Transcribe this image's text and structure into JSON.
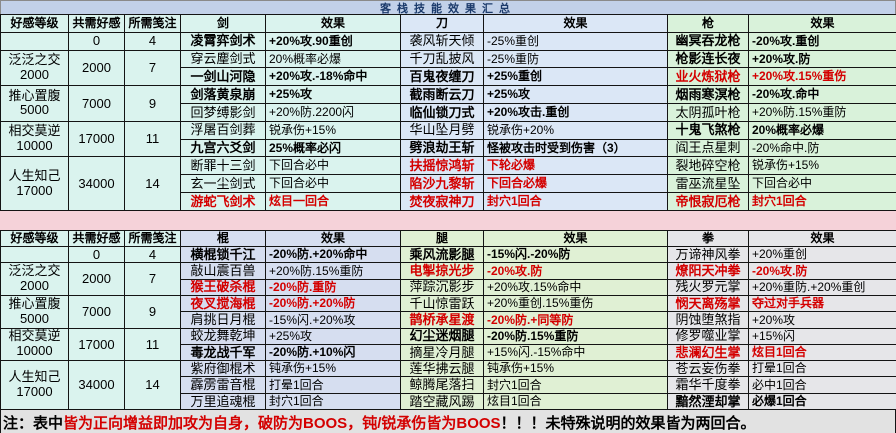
{
  "title": "客栈技能效果汇总",
  "colors": {
    "red_accent": "#d40000",
    "title_bg": "#c2d1e9",
    "title_text": "#1b3a6b",
    "page_pink": "#f5d2d9",
    "cyan_group": "#daf3ee",
    "blue_group": "#dbe7f6",
    "green_group": "#d9f2da",
    "periwinkle_group": "#d6def0",
    "green2_group": "#e0f0d4",
    "gray_group": "#e6e6e9"
  },
  "note": {
    "prefix": "注：表中",
    "red": "皆为正向增益即加攻为自身，破防为BOOS，钝/锐承伤皆为BOOS",
    "suffix": "！！！未特殊说明的效果皆为两回合。"
  },
  "sections": [
    {
      "headers": [
        "好感等级",
        "共需好感",
        "所需笺注",
        "剑",
        "效果",
        "刀",
        "效果",
        "枪",
        "效果"
      ],
      "levels": [
        {
          "name": "",
          "sub": "",
          "total": "0",
          "notes": "4",
          "span": 1
        },
        {
          "name": "泛泛之交",
          "sub": "2000",
          "total": "2000",
          "notes": "7",
          "span": 2
        },
        {
          "name": "推心置腹",
          "sub": "5000",
          "total": "7000",
          "notes": "9",
          "span": 2
        },
        {
          "name": "相交莫逆",
          "sub": "10000",
          "total": "17000",
          "notes": "11",
          "span": 2
        },
        {
          "name": "人生知己",
          "sub": "17000",
          "total": "34000",
          "notes": "14",
          "span": 3
        }
      ],
      "rows": [
        [
          {
            "t": "凌霄弈剑术",
            "s": "b"
          },
          {
            "t": "+20%攻.90重创",
            "s": "b"
          },
          {
            "t": "袭风斩天倾",
            "s": ""
          },
          {
            "t": "-25%重创",
            "s": ""
          },
          {
            "t": "幽冥吞龙枪",
            "s": "b"
          },
          {
            "t": "-20%攻.重创",
            "s": "b"
          }
        ],
        [
          {
            "t": "穿云麈剑式",
            "s": ""
          },
          {
            "t": "20%概率必爆",
            "s": ""
          },
          {
            "t": "千刀乱披风",
            "s": ""
          },
          {
            "t": "-25%重防",
            "s": ""
          },
          {
            "t": "枪影连长夜",
            "s": "b"
          },
          {
            "t": "+20%攻.防",
            "s": "b"
          }
        ],
        [
          {
            "t": "一剑山河隐",
            "s": "b"
          },
          {
            "t": "+20%攻.-18%命中",
            "s": "b"
          },
          {
            "t": "百鬼夜缠刀",
            "s": "b"
          },
          {
            "t": "+25%重创",
            "s": "b"
          },
          {
            "t": "业火炼狱枪",
            "s": "r"
          },
          {
            "t": "+20%攻.15%重伤",
            "s": "r"
          }
        ],
        [
          {
            "t": "剑落黄泉崩",
            "s": "b"
          },
          {
            "t": "+25%攻",
            "s": "b"
          },
          {
            "t": "截雨断云刀",
            "s": "b"
          },
          {
            "t": "+25%攻",
            "s": "b"
          },
          {
            "t": "烟雨寒溟枪",
            "s": "b"
          },
          {
            "t": "-20%攻.命中",
            "s": "b"
          }
        ],
        [
          {
            "t": "回梦缚影剑",
            "s": ""
          },
          {
            "t": "+20%防.2200闪",
            "s": ""
          },
          {
            "t": "临仙锁刀式",
            "s": "b"
          },
          {
            "t": "+20%攻击.重创",
            "s": "b"
          },
          {
            "t": "太阴孤叶枪",
            "s": ""
          },
          {
            "t": "+20%防.15%重防",
            "s": ""
          }
        ],
        [
          {
            "t": "浮屠百剑葬",
            "s": ""
          },
          {
            "t": "锐承伤+15%",
            "s": ""
          },
          {
            "t": "华山坠月劈",
            "s": ""
          },
          {
            "t": "锐承伤+20%",
            "s": ""
          },
          {
            "t": "十鬼飞煞枪",
            "s": "b"
          },
          {
            "t": "20%概率必爆",
            "s": "b"
          }
        ],
        [
          {
            "t": "九宫六爻剑",
            "s": "b"
          },
          {
            "t": "25%概率必闪",
            "s": "b"
          },
          {
            "t": "劈浪劫王斩",
            "s": "b"
          },
          {
            "t": "怪被攻击时受到伤害（3）",
            "s": "b"
          },
          {
            "t": "阎王点星刺",
            "s": ""
          },
          {
            "t": "-20%命中.防",
            "s": ""
          }
        ],
        [
          {
            "t": "断罪十三剑",
            "s": ""
          },
          {
            "t": "下回合必中",
            "s": ""
          },
          {
            "t": "扶摇惊鸿斩",
            "s": "r"
          },
          {
            "t": "下轮必爆",
            "s": "r"
          },
          {
            "t": "裂地碎空枪",
            "s": ""
          },
          {
            "t": "锐承伤+15%",
            "s": ""
          }
        ],
        [
          {
            "t": "玄一尘剑式",
            "s": ""
          },
          {
            "t": "下回合必中",
            "s": ""
          },
          {
            "t": "陷沙九黎斩",
            "s": "r"
          },
          {
            "t": "下回合必爆",
            "s": "r"
          },
          {
            "t": "雷巫流星坠",
            "s": ""
          },
          {
            "t": "下回合必中",
            "s": ""
          }
        ],
        [
          {
            "t": "游蛇飞剑术",
            "s": "r"
          },
          {
            "t": "炫目一回合",
            "s": "r"
          },
          {
            "t": "焚夜寂神刀",
            "s": "r"
          },
          {
            "t": "封穴1回合",
            "s": "r"
          },
          {
            "t": "帝恨寂厄枪",
            "s": "r"
          },
          {
            "t": "封穴1回合",
            "s": "r"
          }
        ]
      ]
    },
    {
      "headers": [
        "好感等级",
        "共需好感",
        "所需笺注",
        "棍",
        "效果",
        "腿",
        "效果",
        "拳",
        "效果"
      ],
      "levels": [
        {
          "name": "",
          "sub": "",
          "total": "0",
          "notes": "4",
          "span": 1
        },
        {
          "name": "泛泛之交",
          "sub": "2000",
          "total": "2000",
          "notes": "7",
          "span": 2
        },
        {
          "name": "推心置腹",
          "sub": "5000",
          "total": "7000",
          "notes": "9",
          "span": 2
        },
        {
          "name": "相交莫逆",
          "sub": "10000",
          "total": "17000",
          "notes": "11",
          "span": 2
        },
        {
          "name": "人生知己",
          "sub": "17000",
          "total": "34000",
          "notes": "14",
          "span": 3
        }
      ],
      "rows": [
        [
          {
            "t": "横棍锁千江",
            "s": "b"
          },
          {
            "t": "-20%防.+20%命中",
            "s": "b"
          },
          {
            "t": "乘风流影腿",
            "s": "b"
          },
          {
            "t": "-15%闪.-20%防",
            "s": "b"
          },
          {
            "t": "万谛神风拳",
            "s": ""
          },
          {
            "t": "+20%重创",
            "s": ""
          }
        ],
        [
          {
            "t": "敲山震百兽",
            "s": ""
          },
          {
            "t": "+20%防.15%重防",
            "s": ""
          },
          {
            "t": "电掣掠光步",
            "s": "r"
          },
          {
            "t": "-20%攻.防",
            "s": "r"
          },
          {
            "t": "燎阳天冲拳",
            "s": "r"
          },
          {
            "t": "-20%攻.防",
            "s": "r"
          }
        ],
        [
          {
            "t": "猴王破杀棍",
            "s": "r"
          },
          {
            "t": "-20%防.重防",
            "s": "r"
          },
          {
            "t": "萍踪沉影步",
            "s": ""
          },
          {
            "t": "+20%攻.15%命中",
            "s": ""
          },
          {
            "t": "残火罗元掌",
            "s": ""
          },
          {
            "t": "+20%重防.+20%重创",
            "s": ""
          }
        ],
        [
          {
            "t": "夜叉搅海棍",
            "s": "r"
          },
          {
            "t": "-20%防.+20%防",
            "s": "r"
          },
          {
            "t": "千山惊雷跃",
            "s": ""
          },
          {
            "t": "+20%重创.15%重伤",
            "s": ""
          },
          {
            "t": "悯天离殇掌",
            "s": "r"
          },
          {
            "t": "夺过对手兵器",
            "s": "r"
          }
        ],
        [
          {
            "t": "肩挑日月棍",
            "s": ""
          },
          {
            "t": "-15%闪.+20%攻",
            "s": ""
          },
          {
            "t": "鹊桥承星渡",
            "s": "r"
          },
          {
            "t": "-20%防.+同等防",
            "s": "r"
          },
          {
            "t": "阴蚀堕煞指",
            "s": ""
          },
          {
            "t": "+20%攻",
            "s": ""
          }
        ],
        [
          {
            "t": "蛟龙舞乾坤",
            "s": ""
          },
          {
            "t": "+25%攻",
            "s": ""
          },
          {
            "t": "幻尘迷烟腿",
            "s": "b"
          },
          {
            "t": "-20%防.15%重防",
            "s": "b"
          },
          {
            "t": "修罗噬业掌",
            "s": ""
          },
          {
            "t": "+15%闪",
            "s": ""
          }
        ],
        [
          {
            "t": "毒龙战千军",
            "s": "b"
          },
          {
            "t": "-20%防.+10%闪",
            "s": "b"
          },
          {
            "t": "摘星冷月腿",
            "s": ""
          },
          {
            "t": "+15%闪.-15%命中",
            "s": ""
          },
          {
            "t": "悲澜幻生掌",
            "s": "r"
          },
          {
            "t": "炫目1回合",
            "s": "r"
          }
        ],
        [
          {
            "t": "紫府御棍术",
            "s": ""
          },
          {
            "t": "钝承伤+15%",
            "s": ""
          },
          {
            "t": "莲华拂云腿",
            "s": ""
          },
          {
            "t": "钝承伤+15%",
            "s": ""
          },
          {
            "t": "苍云妄伤拳",
            "s": ""
          },
          {
            "t": "打晕1回合",
            "s": ""
          }
        ],
        [
          {
            "t": "霹雳雷音棍",
            "s": ""
          },
          {
            "t": "打晕1回合",
            "s": ""
          },
          {
            "t": "鲸腾尾落扫",
            "s": ""
          },
          {
            "t": "封穴1回合",
            "s": ""
          },
          {
            "t": "霜华千度拳",
            "s": ""
          },
          {
            "t": "必中1回合",
            "s": ""
          }
        ],
        [
          {
            "t": "万里追魂棍",
            "s": ""
          },
          {
            "t": "封穴1回合",
            "s": ""
          },
          {
            "t": "踏空藏风踢",
            "s": ""
          },
          {
            "t": "炫目1回合",
            "s": ""
          },
          {
            "t": "黯然湮却掌",
            "s": "b"
          },
          {
            "t": "必爆1回合",
            "s": "b"
          }
        ]
      ]
    }
  ]
}
